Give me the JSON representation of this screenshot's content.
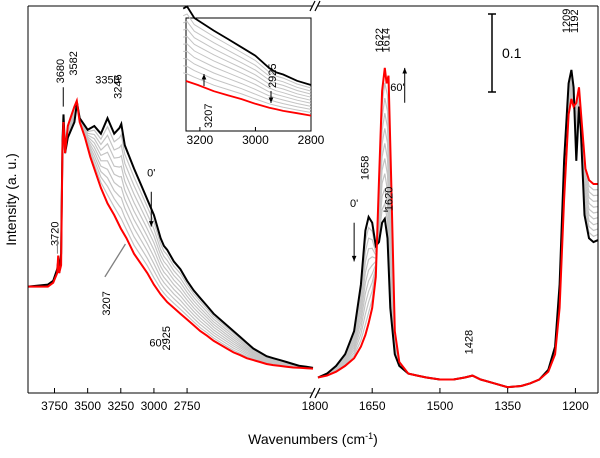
{
  "chart_data": {
    "type": "line",
    "xlabel": "Wavenumbers (cm",
    "xlabel_sup": "-1",
    "xlabel_end": ")",
    "ylabel": "Intensity (a. u.)",
    "x_axis_reversed": true,
    "grid": false,
    "panels": [
      {
        "name": "left",
        "xlim": [
          3950,
          1800
        ],
        "x_ticks": [
          "3750",
          "3500",
          "3250",
          "3000",
          "2750"
        ],
        "x_tick_values": [
          3750,
          3500,
          3250,
          3000,
          2750
        ],
        "edge_tick_label": "1800"
      },
      {
        "name": "right",
        "xlim": [
          1770,
          1150
        ],
        "x_ticks": [
          "1650",
          "1500",
          "1350",
          "1200"
        ],
        "x_tick_values": [
          1650,
          1500,
          1350,
          1200
        ]
      }
    ],
    "ylim": [
      0,
      1
    ],
    "scale_bar_label": "0.1",
    "series": [
      {
        "color": "#000000",
        "left_points": [
          [
            3950,
            0.275
          ],
          [
            3800,
            0.28
          ],
          [
            3760,
            0.29
          ],
          [
            3730,
            0.32
          ],
          [
            3722,
            0.34
          ],
          [
            3715,
            0.31
          ],
          [
            3700,
            0.36
          ],
          [
            3690,
            0.65
          ],
          [
            3682,
            0.72
          ],
          [
            3670,
            0.62
          ],
          [
            3650,
            0.66
          ],
          [
            3600,
            0.7
          ],
          [
            3580,
            0.75
          ],
          [
            3560,
            0.71
          ],
          [
            3500,
            0.68
          ],
          [
            3450,
            0.69
          ],
          [
            3400,
            0.67
          ],
          [
            3350,
            0.71
          ],
          [
            3300,
            0.67
          ],
          [
            3260,
            0.685
          ],
          [
            3246,
            0.695
          ],
          [
            3220,
            0.64
          ],
          [
            3150,
            0.58
          ],
          [
            3100,
            0.54
          ],
          [
            3050,
            0.5
          ],
          [
            3000,
            0.46
          ],
          [
            2950,
            0.4
          ],
          [
            2925,
            0.38
          ],
          [
            2900,
            0.37
          ],
          [
            2850,
            0.34
          ],
          [
            2800,
            0.32
          ],
          [
            2750,
            0.29
          ],
          [
            2700,
            0.265
          ],
          [
            2650,
            0.245
          ],
          [
            2600,
            0.225
          ],
          [
            2550,
            0.205
          ],
          [
            2500,
            0.19
          ],
          [
            2450,
            0.175
          ],
          [
            2400,
            0.16
          ],
          [
            2350,
            0.145
          ],
          [
            2300,
            0.13
          ],
          [
            2250,
            0.115
          ],
          [
            2200,
            0.105
          ],
          [
            2150,
            0.095
          ],
          [
            2100,
            0.09
          ],
          [
            2050,
            0.085
          ],
          [
            2000,
            0.08
          ],
          [
            1950,
            0.075
          ],
          [
            1900,
            0.07
          ],
          [
            1850,
            0.068
          ],
          [
            1800,
            0.065
          ]
        ],
        "right_points": [
          [
            1770,
            0.04
          ],
          [
            1750,
            0.05
          ],
          [
            1730,
            0.07
          ],
          [
            1710,
            0.1
          ],
          [
            1690,
            0.16
          ],
          [
            1675,
            0.28
          ],
          [
            1665,
            0.42
          ],
          [
            1658,
            0.455
          ],
          [
            1650,
            0.44
          ],
          [
            1642,
            0.38
          ],
          [
            1635,
            0.39
          ],
          [
            1628,
            0.44
          ],
          [
            1622,
            0.45
          ],
          [
            1616,
            0.4
          ],
          [
            1610,
            0.22
          ],
          [
            1600,
            0.1
          ],
          [
            1590,
            0.07
          ],
          [
            1570,
            0.05
          ],
          [
            1550,
            0.045
          ],
          [
            1530,
            0.04
          ],
          [
            1500,
            0.035
          ],
          [
            1470,
            0.035
          ],
          [
            1445,
            0.04
          ],
          [
            1428,
            0.045
          ],
          [
            1410,
            0.035
          ],
          [
            1380,
            0.025
          ],
          [
            1350,
            0.015
          ],
          [
            1320,
            0.018
          ],
          [
            1300,
            0.025
          ],
          [
            1280,
            0.035
          ],
          [
            1260,
            0.06
          ],
          [
            1245,
            0.12
          ],
          [
            1235,
            0.28
          ],
          [
            1225,
            0.6
          ],
          [
            1215,
            0.8
          ],
          [
            1209,
            0.835
          ],
          [
            1204,
            0.79
          ],
          [
            1198,
            0.6
          ],
          [
            1192,
            0.74
          ],
          [
            1188,
            0.68
          ],
          [
            1180,
            0.46
          ],
          [
            1170,
            0.4
          ],
          [
            1160,
            0.39
          ],
          [
            1150,
            0.395
          ]
        ]
      },
      {
        "color": "#ff0000",
        "left_points": [
          [
            3950,
            0.275
          ],
          [
            3800,
            0.275
          ],
          [
            3760,
            0.285
          ],
          [
            3730,
            0.31
          ],
          [
            3722,
            0.355
          ],
          [
            3715,
            0.31
          ],
          [
            3700,
            0.33
          ],
          [
            3690,
            0.64
          ],
          [
            3682,
            0.7
          ],
          [
            3670,
            0.62
          ],
          [
            3650,
            0.69
          ],
          [
            3620,
            0.72
          ],
          [
            3600,
            0.74
          ],
          [
            3582,
            0.755
          ],
          [
            3560,
            0.7
          ],
          [
            3520,
            0.66
          ],
          [
            3480,
            0.61
          ],
          [
            3440,
            0.57
          ],
          [
            3400,
            0.53
          ],
          [
            3350,
            0.49
          ],
          [
            3300,
            0.46
          ],
          [
            3250,
            0.425
          ],
          [
            3207,
            0.4
          ],
          [
            3150,
            0.36
          ],
          [
            3100,
            0.335
          ],
          [
            3050,
            0.31
          ],
          [
            3000,
            0.28
          ],
          [
            2950,
            0.255
          ],
          [
            2925,
            0.245
          ],
          [
            2900,
            0.235
          ],
          [
            2850,
            0.22
          ],
          [
            2800,
            0.205
          ],
          [
            2750,
            0.19
          ],
          [
            2700,
            0.175
          ],
          [
            2650,
            0.16
          ],
          [
            2600,
            0.148
          ],
          [
            2550,
            0.135
          ],
          [
            2500,
            0.125
          ],
          [
            2450,
            0.115
          ],
          [
            2400,
            0.105
          ],
          [
            2350,
            0.098
          ],
          [
            2300,
            0.09
          ],
          [
            2250,
            0.085
          ],
          [
            2200,
            0.08
          ],
          [
            2150,
            0.075
          ],
          [
            2100,
            0.072
          ],
          [
            2050,
            0.07
          ],
          [
            2000,
            0.068
          ],
          [
            1950,
            0.066
          ],
          [
            1900,
            0.065
          ],
          [
            1850,
            0.064
          ],
          [
            1800,
            0.063
          ]
        ],
        "right_points": [
          [
            1770,
            0.04
          ],
          [
            1750,
            0.045
          ],
          [
            1730,
            0.055
          ],
          [
            1710,
            0.07
          ],
          [
            1690,
            0.09
          ],
          [
            1675,
            0.12
          ],
          [
            1665,
            0.15
          ],
          [
            1658,
            0.18
          ],
          [
            1650,
            0.22
          ],
          [
            1642,
            0.3
          ],
          [
            1635,
            0.55
          ],
          [
            1628,
            0.78
          ],
          [
            1622,
            0.84
          ],
          [
            1618,
            0.8
          ],
          [
            1614,
            0.82
          ],
          [
            1608,
            0.55
          ],
          [
            1600,
            0.16
          ],
          [
            1590,
            0.08
          ],
          [
            1570,
            0.05
          ],
          [
            1550,
            0.045
          ],
          [
            1530,
            0.04
          ],
          [
            1500,
            0.035
          ],
          [
            1470,
            0.035
          ],
          [
            1445,
            0.04
          ],
          [
            1428,
            0.045
          ],
          [
            1410,
            0.035
          ],
          [
            1380,
            0.025
          ],
          [
            1350,
            0.015
          ],
          [
            1320,
            0.018
          ],
          [
            1300,
            0.025
          ],
          [
            1280,
            0.035
          ],
          [
            1260,
            0.055
          ],
          [
            1245,
            0.1
          ],
          [
            1235,
            0.22
          ],
          [
            1225,
            0.5
          ],
          [
            1215,
            0.72
          ],
          [
            1209,
            0.76
          ],
          [
            1204,
            0.74
          ],
          [
            1198,
            0.75
          ],
          [
            1192,
            0.79
          ],
          [
            1186,
            0.7
          ],
          [
            1178,
            0.58
          ],
          [
            1170,
            0.55
          ],
          [
            1160,
            0.54
          ],
          [
            1150,
            0.54
          ]
        ]
      }
    ],
    "gray_curves": 9,
    "annotations": [
      {
        "text": "3680",
        "panel": "left",
        "x": 3680,
        "y": 0.8,
        "rotate": -90
      },
      {
        "text": "3582",
        "panel": "left",
        "x": 3582,
        "y": 0.82,
        "rotate": -90
      },
      {
        "text": "3350",
        "panel": "left",
        "x": 3350,
        "y": 0.8,
        "rotate": 0
      },
      {
        "text": "3246",
        "panel": "left",
        "x": 3246,
        "y": 0.76,
        "rotate": -90
      },
      {
        "text": "3720",
        "panel": "left",
        "x": 3720,
        "y": 0.38,
        "rotate": -90
      },
      {
        "text": "0'",
        "panel": "left",
        "x": 3020,
        "y": 0.56,
        "rotate": 0
      },
      {
        "text": "3207",
        "panel": "left",
        "x": 3330,
        "y": 0.2,
        "rotate": -90
      },
      {
        "text": "60'",
        "panel": "left",
        "x": 2980,
        "y": 0.12,
        "rotate": 0
      },
      {
        "text": "2925",
        "panel": "left",
        "x": 2880,
        "y": 0.11,
        "rotate": -90
      },
      {
        "text": "1658",
        "panel": "right",
        "x": 1658,
        "y": 0.55,
        "rotate": -90
      },
      {
        "text": "1622",
        "panel": "right",
        "x": 1626,
        "y": 0.88,
        "rotate": -90
      },
      {
        "text": "1614",
        "panel": "right",
        "x": 1612,
        "y": 0.88,
        "rotate": -90
      },
      {
        "text": "60'",
        "panel": "right",
        "x": 1594,
        "y": 0.78,
        "rotate": 0
      },
      {
        "text": "0'",
        "panel": "right",
        "x": 1690,
        "y": 0.48,
        "rotate": 0
      },
      {
        "text": "1620",
        "panel": "right",
        "x": 1605,
        "y": 0.47,
        "rotate": -90
      },
      {
        "text": "1428",
        "panel": "right",
        "x": 1428,
        "y": 0.1,
        "rotate": -90
      },
      {
        "text": "1209",
        "panel": "right",
        "x": 1212,
        "y": 0.93,
        "rotate": -90
      },
      {
        "text": "1192",
        "panel": "right",
        "x": 1194,
        "y": 0.93,
        "rotate": -90
      }
    ],
    "inset": {
      "xlim": [
        3250,
        2800
      ],
      "x_ticks": [
        "3200",
        "3000",
        "2800"
      ],
      "x_tick_values": [
        3200,
        3000,
        2800
      ],
      "annotations": [
        "2925",
        "3207"
      ]
    }
  }
}
